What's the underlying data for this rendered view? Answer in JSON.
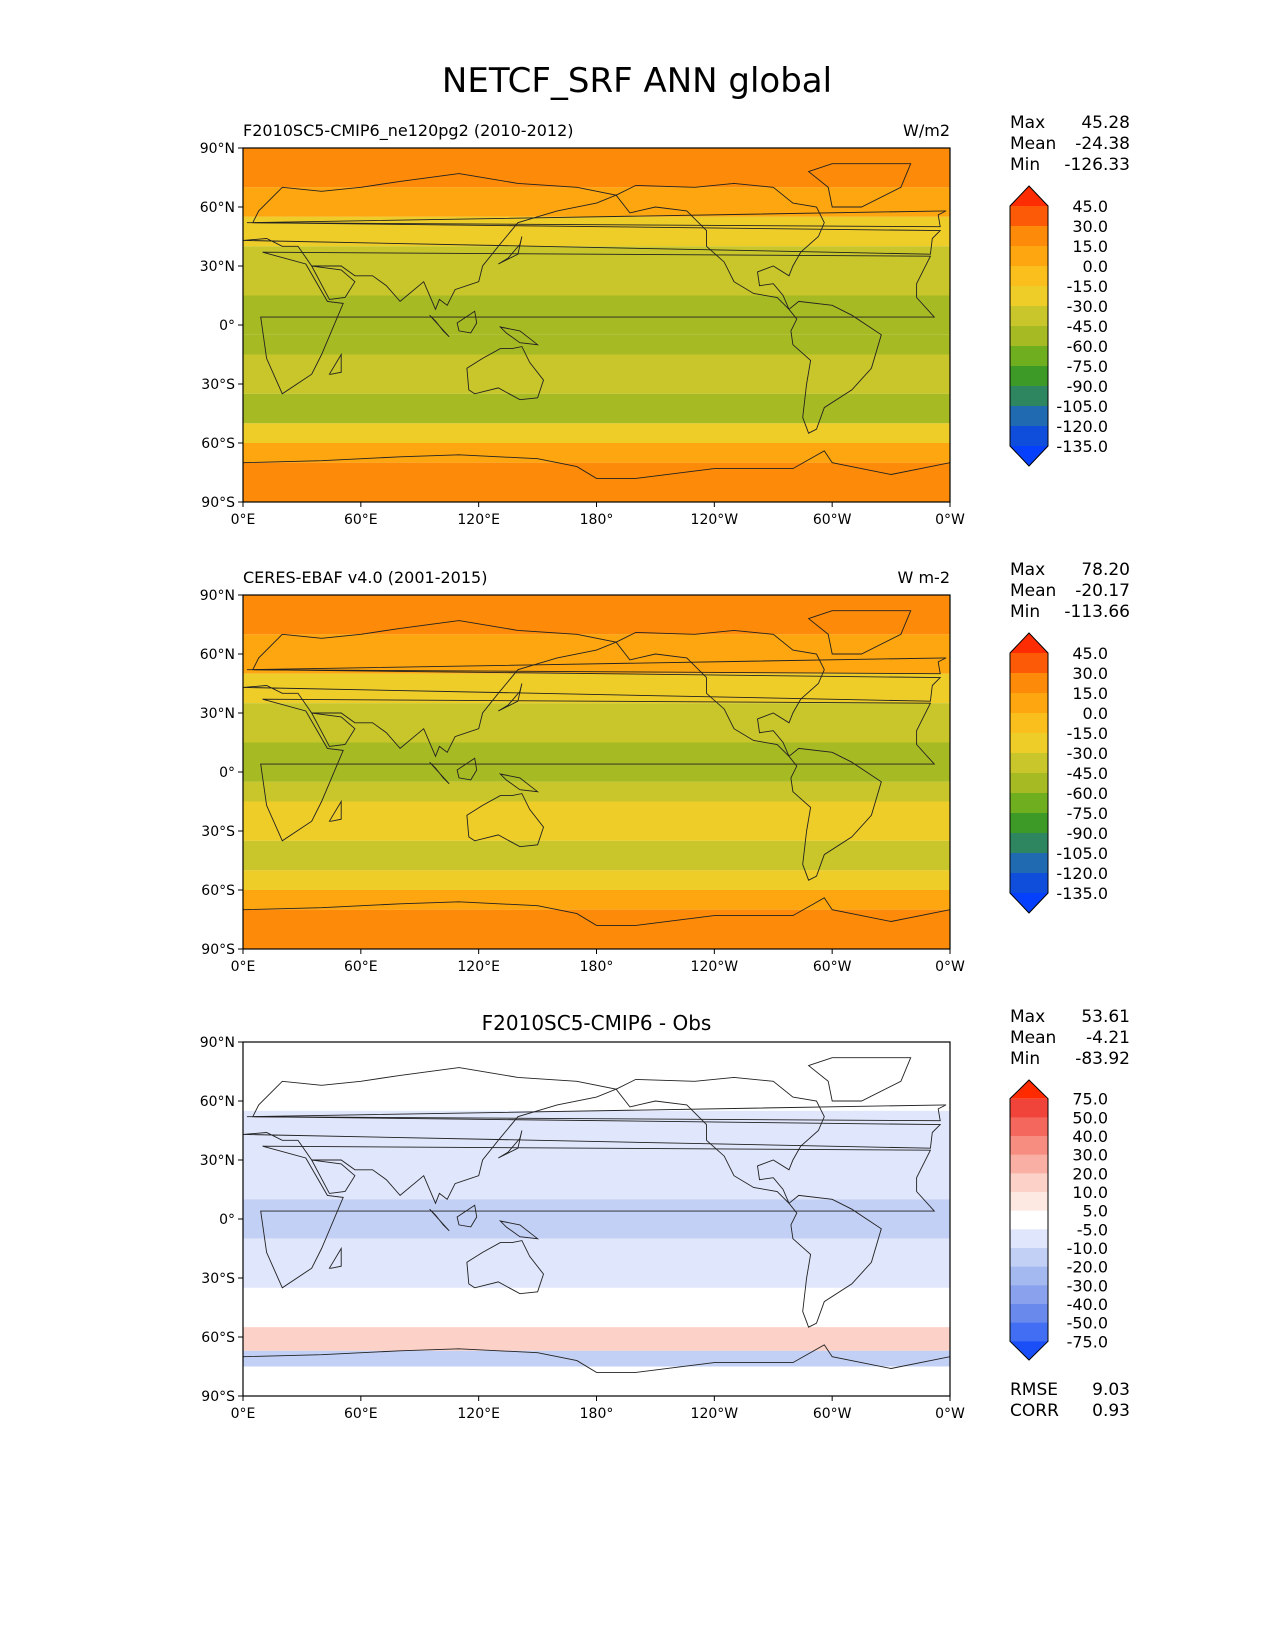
{
  "figure_title": "NETCF_SRF ANN global",
  "chart_data": [
    {
      "type": "heatmap",
      "subtitle_left": "F2010SC5-CMIP6_ne120pg2 (2010-2012)",
      "subtitle_center": "",
      "units": "W/m2",
      "stats": {
        "Max": "45.28",
        "Mean": "-24.38",
        "Min": "-126.33"
      },
      "colorbar_levels": [
        "45.0",
        "30.0",
        "15.0",
        "0.0",
        "-15.0",
        "-30.0",
        "-45.0",
        "-60.0",
        "-75.0",
        "-90.0",
        "-105.0",
        "-120.0",
        "-135.0"
      ],
      "colorbar_colors": [
        "#fe2c03",
        "#fd5a08",
        "#fd8a08",
        "#fda60f",
        "#fbbf1d",
        "#efcd29",
        "#c8c62a",
        "#a6bb23",
        "#6fae1f",
        "#3e9a27",
        "#2e8660",
        "#1f6ab0",
        "#0e4edb",
        "#0540ff"
      ],
      "xticks": [
        "0°E",
        "60°E",
        "120°E",
        "180°",
        "120°W",
        "60°W",
        "0°W"
      ],
      "yticks": [
        "90°N",
        "60°N",
        "30°N",
        "0°",
        "30°S",
        "60°S",
        "90°S"
      ],
      "xlim": [
        0,
        360
      ],
      "ylim": [
        -90,
        90
      ],
      "field_bands": [
        {
          "lat": [
            70,
            90
          ],
          "value": 30
        },
        {
          "lat": [
            55,
            70
          ],
          "value": 5
        },
        {
          "lat": [
            40,
            55
          ],
          "value": -15
        },
        {
          "lat": [
            15,
            40
          ],
          "value": -30
        },
        {
          "lat": [
            -5,
            15
          ],
          "value": -55
        },
        {
          "lat": [
            -15,
            -5
          ],
          "value": -45
        },
        {
          "lat": [
            -35,
            -15
          ],
          "value": -30
        },
        {
          "lat": [
            -50,
            -35
          ],
          "value": -45
        },
        {
          "lat": [
            -60,
            -50
          ],
          "value": -20
        },
        {
          "lat": [
            -70,
            -60
          ],
          "value": 10
        },
        {
          "lat": [
            -90,
            -70
          ],
          "value": 25
        }
      ]
    },
    {
      "type": "heatmap",
      "subtitle_left": "CERES-EBAF v4.0 (2001-2015)",
      "subtitle_center": "",
      "units": "W m-2",
      "stats": {
        "Max": "78.20",
        "Mean": "-20.17",
        "Min": "-113.66"
      },
      "colorbar_levels": [
        "45.0",
        "30.0",
        "15.0",
        "0.0",
        "-15.0",
        "-30.0",
        "-45.0",
        "-60.0",
        "-75.0",
        "-90.0",
        "-105.0",
        "-120.0",
        "-135.0"
      ],
      "colorbar_colors": [
        "#fe2c03",
        "#fd5a08",
        "#fd8a08",
        "#fda60f",
        "#fbbf1d",
        "#efcd29",
        "#c8c62a",
        "#a6bb23",
        "#6fae1f",
        "#3e9a27",
        "#2e8660",
        "#1f6ab0",
        "#0e4edb",
        "#0540ff"
      ],
      "xticks": [
        "0°E",
        "60°E",
        "120°E",
        "180°",
        "120°W",
        "60°W",
        "0°W"
      ],
      "yticks": [
        "90°N",
        "60°N",
        "30°N",
        "0°",
        "30°S",
        "60°S",
        "90°S"
      ],
      "xlim": [
        0,
        360
      ],
      "ylim": [
        -90,
        90
      ],
      "field_bands": [
        {
          "lat": [
            70,
            90
          ],
          "value": 30
        },
        {
          "lat": [
            50,
            70
          ],
          "value": 15
        },
        {
          "lat": [
            35,
            50
          ],
          "value": -20
        },
        {
          "lat": [
            15,
            35
          ],
          "value": -30
        },
        {
          "lat": [
            -5,
            15
          ],
          "value": -50
        },
        {
          "lat": [
            -15,
            -5
          ],
          "value": -35
        },
        {
          "lat": [
            -35,
            -15
          ],
          "value": -25
        },
        {
          "lat": [
            -50,
            -35
          ],
          "value": -40
        },
        {
          "lat": [
            -60,
            -50
          ],
          "value": -25
        },
        {
          "lat": [
            -70,
            -60
          ],
          "value": 10
        },
        {
          "lat": [
            -90,
            -70
          ],
          "value": 30
        }
      ]
    },
    {
      "type": "heatmap",
      "subtitle_left": "",
      "subtitle_center": "F2010SC5-CMIP6 - Obs",
      "units": "",
      "stats": {
        "Max": "53.61",
        "Mean": "-4.21",
        "Min": "-83.92"
      },
      "colorbar_levels": [
        "75.0",
        "50.0",
        "40.0",
        "30.0",
        "20.0",
        "10.0",
        "5.0",
        "-5.0",
        "-10.0",
        "-20.0",
        "-30.0",
        "-40.0",
        "-50.0",
        "-75.0"
      ],
      "colorbar_colors": [
        "#ff2a00",
        "#f0433a",
        "#f3675c",
        "#f78d80",
        "#f9afa3",
        "#fcd1c7",
        "#fde8e2",
        "#ffffff",
        "#e0e6fb",
        "#c3d0f6",
        "#a5b9f1",
        "#8aa2ed",
        "#6989ed",
        "#416ef3",
        "#1a4ff7"
      ],
      "xticks": [
        "0°E",
        "60°E",
        "120°E",
        "180°",
        "120°W",
        "60°W",
        "0°W"
      ],
      "yticks": [
        "90°N",
        "60°N",
        "30°N",
        "0°",
        "30°S",
        "60°S",
        "90°S"
      ],
      "xlim": [
        0,
        360
      ],
      "ylim": [
        -90,
        90
      ],
      "field_bands": [
        {
          "lat": [
            75,
            90
          ],
          "value": 3
        },
        {
          "lat": [
            55,
            75
          ],
          "value": 0
        },
        {
          "lat": [
            10,
            55
          ],
          "value": -8
        },
        {
          "lat": [
            -10,
            10
          ],
          "value": -12
        },
        {
          "lat": [
            -35,
            -10
          ],
          "value": -7
        },
        {
          "lat": [
            -55,
            -35
          ],
          "value": 0
        },
        {
          "lat": [
            -67,
            -55
          ],
          "value": 12
        },
        {
          "lat": [
            -75,
            -67
          ],
          "value": -15
        },
        {
          "lat": [
            -90,
            -75
          ],
          "value": -3
        }
      ],
      "extra_stats": {
        "RMSE": "9.03",
        "CORR": "0.93"
      }
    }
  ]
}
